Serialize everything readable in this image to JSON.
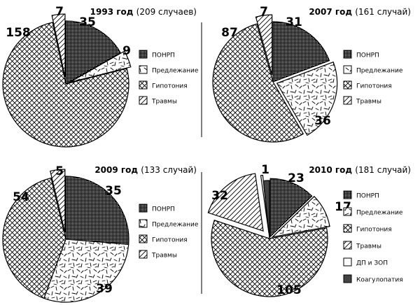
{
  "chart_data": [
    {
      "type": "pie",
      "title_bold": "1993 год",
      "title_rest": "(209 случаев)",
      "slices": [
        {
          "label": "ПОНРП",
          "value": 35
        },
        {
          "label": "Предлежание",
          "value": 9
        },
        {
          "label": "Гипотония",
          "value": 158
        },
        {
          "label": "Травмы",
          "value": 7
        }
      ],
      "legend": [
        "ПОНРП",
        "Предлежание",
        "Гипотония",
        "Травмы"
      ]
    },
    {
      "type": "pie",
      "title_bold": "2007 год",
      "title_rest": "(161 случай)",
      "slices": [
        {
          "label": "ПОНРП",
          "value": 31
        },
        {
          "label": "Предлежание",
          "value": 36
        },
        {
          "label": "Гипотония",
          "value": 87
        },
        {
          "label": "Травмы",
          "value": 7
        }
      ],
      "legend": [
        "ПОНРП",
        "Предлежание",
        "Гипотония",
        "Травмы"
      ]
    },
    {
      "type": "pie",
      "title_bold": "2009 год",
      "title_rest": "(133 случай)",
      "slices": [
        {
          "label": "ПОНРП",
          "value": 35
        },
        {
          "label": "Предлежание",
          "value": 39
        },
        {
          "label": "Гипотония",
          "value": 54
        },
        {
          "label": "Травмы",
          "value": 5
        }
      ],
      "legend": [
        "ПОНРП",
        "Предлежание",
        "Гипотония",
        "Травмы"
      ]
    },
    {
      "type": "pie",
      "title_bold": "2010 год",
      "title_rest": "(181 случай)",
      "slices": [
        {
          "label": "ПОНРП",
          "value": 23
        },
        {
          "label": "Предлежание",
          "value": 17
        },
        {
          "label": "Гипотония",
          "value": 105
        },
        {
          "label": "Травмы",
          "value": 32
        },
        {
          "label": "ДП и ЗОП",
          "value": 1
        },
        {
          "label": "Коагулопатия",
          "value": 3
        }
      ],
      "legend": [
        "ПОНРП",
        "Предлежание",
        "Гипотония",
        "Травмы",
        "ДП и ЗОП",
        "Коагулопатия"
      ]
    }
  ]
}
